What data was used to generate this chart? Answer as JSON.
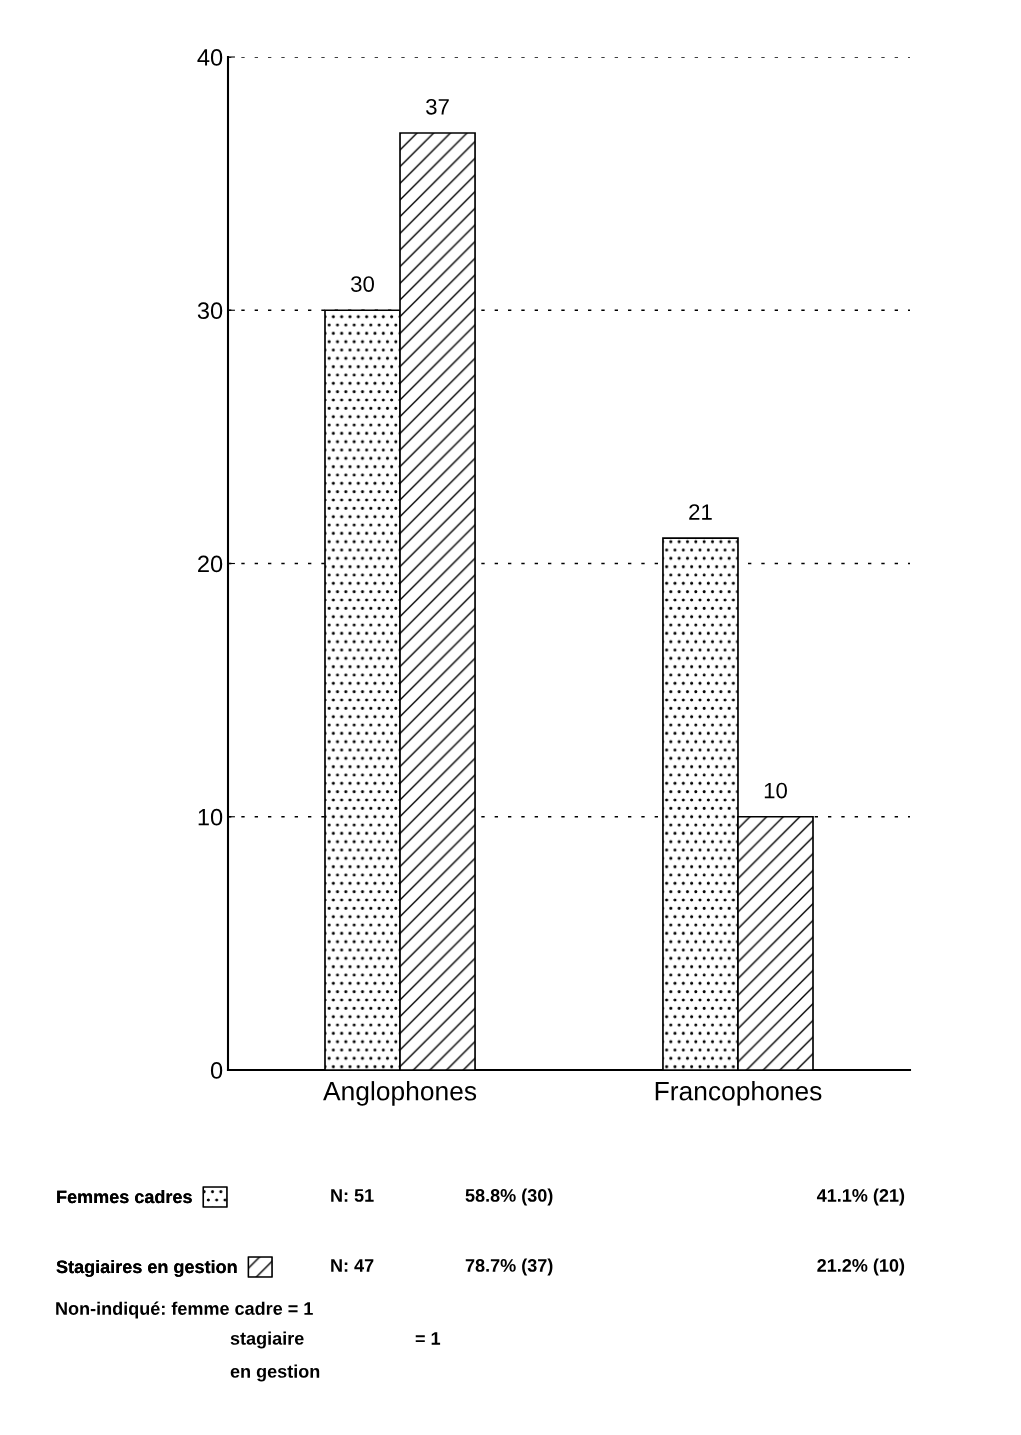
{
  "chart_data": {
    "type": "bar",
    "categories": [
      "Anglophones",
      "Francophones"
    ],
    "series": [
      {
        "name": "Femmes cadres",
        "color": "#000000",
        "values": [
          30,
          21
        ]
      },
      {
        "name": "Stagiaires en gestion",
        "color": "#000000",
        "values": [
          37,
          10
        ]
      }
    ],
    "ylim": [
      0,
      40
    ],
    "yticks": [
      0,
      10,
      20,
      30,
      40
    ],
    "grid": "y",
    "data_labels": true,
    "legend": "bottom",
    "annotations": [
      "N: 51",
      "58.8% (30)",
      "41.1% (21)",
      "N: 47",
      "78.7% (37)",
      "21.2% (10)",
      "Non-indiqué: femme cadre = 1",
      "stagiaire",
      "= 1",
      "en gestion"
    ]
  }
}
